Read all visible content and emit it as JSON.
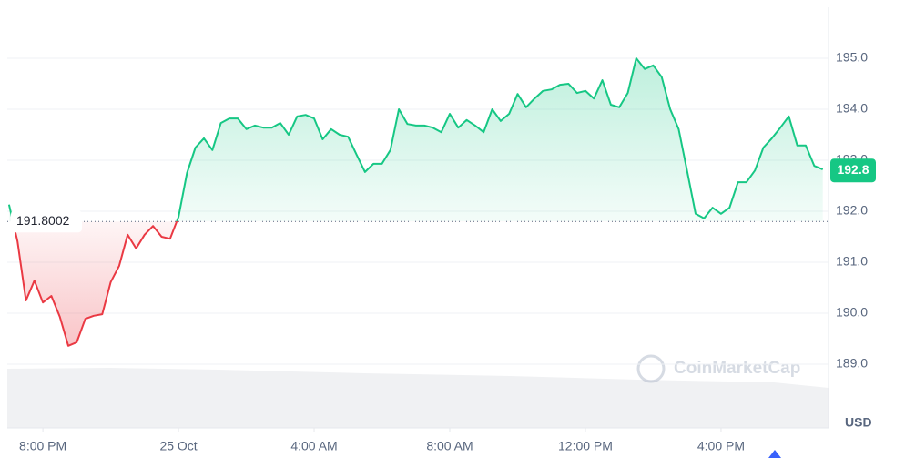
{
  "chart_data": {
    "type": "baseline-line",
    "x": [
      -1,
      -0.75,
      -0.5,
      -0.25,
      0,
      0.25,
      0.5,
      0.75,
      1,
      1.25,
      1.5,
      1.75,
      2,
      2.25,
      2.5,
      2.75,
      3,
      3.25,
      3.5,
      3.75,
      4,
      4.25,
      4.5,
      4.75,
      5,
      5.25,
      5.5,
      5.75,
      6,
      6.25,
      6.5,
      6.75,
      7,
      7.25,
      7.5,
      7.75,
      8,
      8.25,
      8.5,
      8.75,
      9,
      9.25,
      9.5,
      9.75,
      10,
      10.25,
      10.5,
      10.75,
      11,
      11.25,
      11.5,
      11.75,
      12,
      12.25,
      12.5,
      12.75,
      13,
      13.25,
      13.5,
      13.75,
      14,
      14.25,
      14.5,
      14.75,
      15,
      15.25,
      15.5,
      15.75,
      16,
      16.25,
      16.5,
      16.75,
      17,
      17.25,
      17.5,
      17.75,
      18,
      18.25,
      18.5,
      18.75,
      19,
      19.25,
      19.5,
      19.75,
      20,
      20.25,
      20.5,
      20.75,
      21,
      21.25,
      21.5,
      21.75,
      22,
      22.25,
      22.5,
      22.75,
      23
    ],
    "values": [
      192.13,
      191.41,
      190.25,
      190.64,
      190.21,
      190.34,
      189.93,
      189.36,
      189.43,
      189.89,
      189.95,
      189.98,
      190.61,
      190.93,
      191.54,
      191.27,
      191.54,
      191.71,
      191.5,
      191.46,
      191.89,
      192.75,
      193.25,
      193.43,
      193.2,
      193.73,
      193.82,
      193.82,
      193.61,
      193.68,
      193.64,
      193.64,
      193.73,
      193.5,
      193.86,
      193.89,
      193.82,
      193.41,
      193.61,
      193.5,
      193.46,
      193.11,
      192.77,
      192.93,
      192.93,
      193.2,
      194.0,
      193.71,
      193.68,
      193.68,
      193.64,
      193.55,
      193.91,
      193.64,
      193.79,
      193.68,
      193.55,
      194.0,
      193.77,
      193.91,
      194.3,
      194.04,
      194.21,
      194.36,
      194.39,
      194.48,
      194.5,
      194.32,
      194.36,
      194.21,
      194.57,
      194.09,
      194.04,
      194.32,
      195.0,
      194.79,
      194.86,
      194.63,
      194.0,
      193.61,
      192.79,
      191.95,
      191.86,
      192.07,
      191.95,
      192.07,
      192.57,
      192.57,
      192.8,
      193.25,
      193.43,
      193.64,
      193.86,
      193.29,
      193.29,
      192.89,
      192.82
    ],
    "baseline": 191.8002,
    "current_price": 192.8,
    "up_color": "#16c784",
    "down_color": "#ea3943",
    "xlim": [
      -1.05,
      23.17
    ],
    "xticks": [
      {
        "value": 0,
        "label": "8:00 PM"
      },
      {
        "value": 4,
        "label": "25 Oct"
      },
      {
        "value": 8,
        "label": "4:00 AM"
      },
      {
        "value": 12,
        "label": "8:00 AM"
      },
      {
        "value": 16,
        "label": "12:00 PM"
      },
      {
        "value": 20,
        "label": "4:00 PM"
      }
    ],
    "ylim": [
      187.75,
      196
    ],
    "yticks": [
      {
        "value": 189,
        "label": "189.0"
      },
      {
        "value": 190,
        "label": "190.0"
      },
      {
        "value": 191,
        "label": "191.0"
      },
      {
        "value": 192,
        "label": "192.0"
      },
      {
        "value": 193,
        "label": "193.0"
      },
      {
        "value": 194,
        "label": "194.0"
      },
      {
        "value": 195,
        "label": "195.0"
      }
    ],
    "grid": true,
    "y_unit": "USD",
    "watermark": "CoinMarketCap"
  }
}
